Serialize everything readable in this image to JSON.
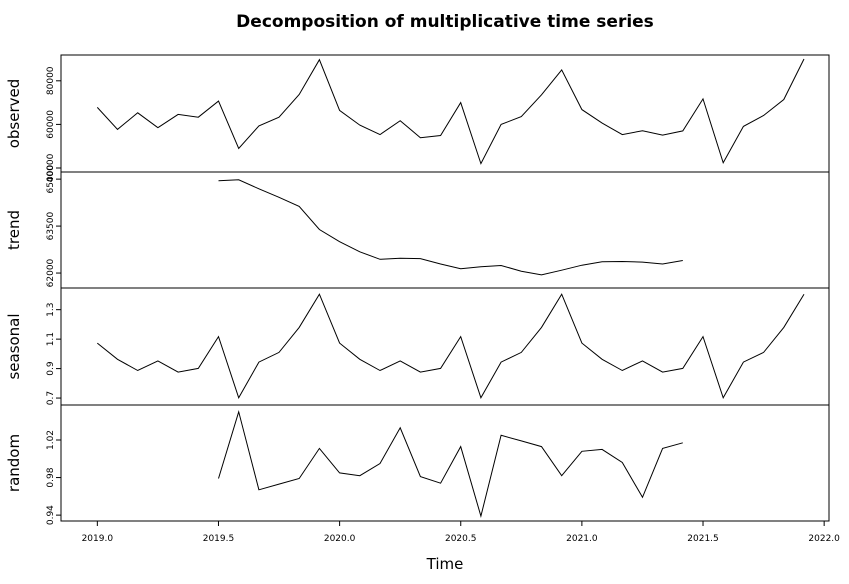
{
  "chart_data": {
    "type": "line",
    "title": "Decomposition of multiplicative time series",
    "xlabel": "Time",
    "xlim": [
      2019.0,
      2022.0
    ],
    "x_ticks": [
      "2019.0",
      "2019.5",
      "2020.0",
      "2020.5",
      "2021.0",
      "2021.5",
      "2022.0"
    ],
    "panels": [
      {
        "name": "observed",
        "ylim": [
          40000,
          90000
        ],
        "y_ticks": [
          "40000",
          "60000",
          "80000"
        ],
        "points": [
          [
            2019.0,
            67800
          ],
          [
            2019.0833,
            57700
          ],
          [
            2019.1667,
            65300
          ],
          [
            2019.25,
            58500
          ],
          [
            2019.3333,
            64600
          ],
          [
            2019.4167,
            63300
          ],
          [
            2019.5,
            70700
          ],
          [
            2019.5833,
            49000
          ],
          [
            2019.6667,
            59300
          ],
          [
            2019.75,
            63300
          ],
          [
            2019.8333,
            73700
          ],
          [
            2019.9167,
            89700
          ],
          [
            2020.0,
            66400
          ],
          [
            2020.0833,
            59700
          ],
          [
            2020.1667,
            55300
          ],
          [
            2020.25,
            61700
          ],
          [
            2020.3333,
            53900
          ],
          [
            2020.4167,
            54900
          ],
          [
            2020.5,
            70000
          ],
          [
            2020.5833,
            42000
          ],
          [
            2020.6667,
            60000
          ],
          [
            2020.75,
            63600
          ],
          [
            2020.8333,
            73600
          ],
          [
            2020.9167,
            85000
          ],
          [
            2021.0,
            66800
          ],
          [
            2021.0833,
            60600
          ],
          [
            2021.1667,
            55300
          ],
          [
            2021.25,
            57100
          ],
          [
            2021.3333,
            55100
          ],
          [
            2021.4167,
            57000
          ],
          [
            2021.5,
            71700
          ],
          [
            2021.5833,
            42400
          ],
          [
            2021.6667,
            59100
          ],
          [
            2021.75,
            64100
          ],
          [
            2021.8333,
            71400
          ],
          [
            2021.9167,
            90000
          ]
        ]
      },
      {
        "name": "trend",
        "ylim": [
          61650,
          65100
        ],
        "y_ticks": [
          "62000",
          "63500",
          "65000"
        ],
        "points": [
          [
            2019.5,
            64950
          ],
          [
            2019.5833,
            64980
          ],
          [
            2019.6667,
            64690
          ],
          [
            2019.75,
            64420
          ],
          [
            2019.8333,
            64130
          ],
          [
            2019.9167,
            63390
          ],
          [
            2020.0,
            63000
          ],
          [
            2020.0833,
            62680
          ],
          [
            2020.1667,
            62440
          ],
          [
            2020.25,
            62470
          ],
          [
            2020.3333,
            62460
          ],
          [
            2020.4167,
            62290
          ],
          [
            2020.5,
            62140
          ],
          [
            2020.5833,
            62200
          ],
          [
            2020.6667,
            62240
          ],
          [
            2020.75,
            62060
          ],
          [
            2020.8333,
            61940
          ],
          [
            2020.9167,
            62090
          ],
          [
            2021.0,
            62250
          ],
          [
            2021.0833,
            62360
          ],
          [
            2021.1667,
            62370
          ],
          [
            2021.25,
            62350
          ],
          [
            2021.3333,
            62290
          ],
          [
            2021.4167,
            62400
          ]
        ]
      },
      {
        "name": "seasonal",
        "ylim": [
          0.68,
          1.42
        ],
        "y_ticks": [
          "0.7",
          "0.9",
          "1.1",
          "1.3"
        ],
        "points": [
          [
            2019.0,
            1.073
          ],
          [
            2019.0833,
            0.963
          ],
          [
            2019.1667,
            0.887
          ],
          [
            2019.25,
            0.952
          ],
          [
            2019.3333,
            0.876
          ],
          [
            2019.4167,
            0.901
          ],
          [
            2019.5,
            1.117
          ],
          [
            2019.5833,
            0.702
          ],
          [
            2019.6667,
            0.944
          ],
          [
            2019.75,
            1.01
          ],
          [
            2019.8333,
            1.18
          ],
          [
            2019.9167,
            1.405
          ],
          [
            2020.0,
            1.073
          ],
          [
            2020.0833,
            0.963
          ],
          [
            2020.1667,
            0.887
          ],
          [
            2020.25,
            0.952
          ],
          [
            2020.3333,
            0.876
          ],
          [
            2020.4167,
            0.901
          ],
          [
            2020.5,
            1.117
          ],
          [
            2020.5833,
            0.702
          ],
          [
            2020.6667,
            0.944
          ],
          [
            2020.75,
            1.01
          ],
          [
            2020.8333,
            1.18
          ],
          [
            2020.9167,
            1.405
          ],
          [
            2021.0,
            1.073
          ],
          [
            2021.0833,
            0.963
          ],
          [
            2021.1667,
            0.887
          ],
          [
            2021.25,
            0.952
          ],
          [
            2021.3333,
            0.876
          ],
          [
            2021.4167,
            0.901
          ],
          [
            2021.5,
            1.117
          ],
          [
            2021.5833,
            0.702
          ],
          [
            2021.6667,
            0.944
          ],
          [
            2021.75,
            1.01
          ],
          [
            2021.8333,
            1.18
          ],
          [
            2021.9167,
            1.405
          ]
        ]
      },
      {
        "name": "random",
        "ylim": [
          0.938,
          1.053
        ],
        "y_ticks": [
          "0.94",
          "0.98",
          "1.02"
        ],
        "points": [
          [
            2019.5,
            0.979
          ],
          [
            2019.5833,
            1.05
          ],
          [
            2019.6667,
            0.967
          ],
          [
            2019.75,
            0.973
          ],
          [
            2019.8333,
            0.979
          ],
          [
            2019.9167,
            1.011
          ],
          [
            2020.0,
            0.985
          ],
          [
            2020.0833,
            0.982
          ],
          [
            2020.1667,
            0.995
          ],
          [
            2020.25,
            1.033
          ],
          [
            2020.3333,
            0.981
          ],
          [
            2020.4167,
            0.974
          ],
          [
            2020.5,
            1.013
          ],
          [
            2020.5833,
            0.939
          ],
          [
            2020.6667,
            1.025
          ],
          [
            2020.75,
            1.019
          ],
          [
            2020.8333,
            1.013
          ],
          [
            2020.9167,
            0.982
          ],
          [
            2021.0,
            1.008
          ],
          [
            2021.0833,
            1.01
          ],
          [
            2021.1667,
            0.996
          ],
          [
            2021.25,
            0.959
          ],
          [
            2021.3333,
            1.011
          ],
          [
            2021.4167,
            1.017
          ]
        ]
      }
    ]
  }
}
